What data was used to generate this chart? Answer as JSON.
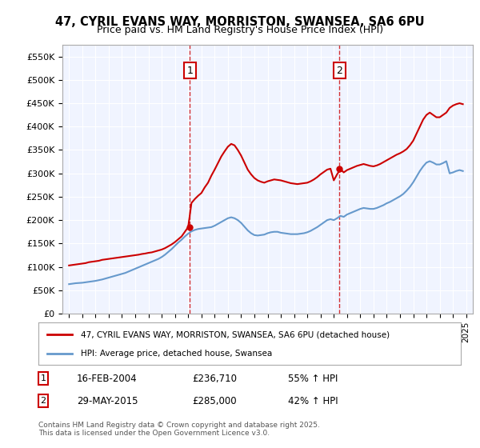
{
  "title_line1": "47, CYRIL EVANS WAY, MORRISTON, SWANSEA, SA6 6PU",
  "title_line2": "Price paid vs. HM Land Registry's House Price Index (HPI)",
  "legend_line1": "47, CYRIL EVANS WAY, MORRISTON, SWANSEA, SA6 6PU (detached house)",
  "legend_line2": "HPI: Average price, detached house, Swansea",
  "footer": "Contains HM Land Registry data © Crown copyright and database right 2025.\nThis data is licensed under the Open Government Licence v3.0.",
  "annotation1": {
    "label": "1",
    "date_str": "16-FEB-2004",
    "price_str": "£236,710",
    "hpi_str": "55% ↑ HPI",
    "x_year": 2004.12
  },
  "annotation2": {
    "label": "2",
    "date_str": "29-MAY-2015",
    "price_str": "£285,000",
    "hpi_str": "42% ↑ HPI",
    "x_year": 2015.42
  },
  "ylim": [
    0,
    575000
  ],
  "xlim_start": 1994.5,
  "xlim_end": 2025.5,
  "yticks": [
    0,
    50000,
    100000,
    150000,
    200000,
    250000,
    300000,
    350000,
    400000,
    450000,
    500000,
    550000
  ],
  "ytick_labels": [
    "£0",
    "£50K",
    "£100K",
    "£150K",
    "£200K",
    "£250K",
    "£300K",
    "£350K",
    "£400K",
    "£450K",
    "£500K",
    "£550K"
  ],
  "xticks": [
    1995,
    1996,
    1997,
    1998,
    1999,
    2000,
    2001,
    2002,
    2003,
    2004,
    2005,
    2006,
    2007,
    2008,
    2009,
    2010,
    2011,
    2012,
    2013,
    2014,
    2015,
    2016,
    2017,
    2018,
    2019,
    2020,
    2021,
    2022,
    2023,
    2024,
    2025
  ],
  "property_color": "#cc0000",
  "hpi_color": "#6699cc",
  "background_color": "#f0f4ff",
  "vline_color": "#cc0000",
  "property_x": [
    1995.0,
    1995.25,
    1995.5,
    1995.75,
    1996.0,
    1996.25,
    1996.5,
    1996.75,
    1997.0,
    1997.25,
    1997.5,
    1997.75,
    1998.0,
    1998.25,
    1998.5,
    1998.75,
    1999.0,
    1999.25,
    1999.5,
    1999.75,
    2000.0,
    2000.25,
    2000.5,
    2000.75,
    2001.0,
    2001.25,
    2001.5,
    2001.75,
    2002.0,
    2002.25,
    2002.5,
    2002.75,
    2003.0,
    2003.25,
    2003.5,
    2003.75,
    2004.0,
    2004.25,
    2004.5,
    2004.75,
    2005.0,
    2005.25,
    2005.5,
    2005.75,
    2006.0,
    2006.25,
    2006.5,
    2006.75,
    2007.0,
    2007.25,
    2007.5,
    2007.75,
    2008.0,
    2008.25,
    2008.5,
    2008.75,
    2009.0,
    2009.25,
    2009.5,
    2009.75,
    2010.0,
    2010.25,
    2010.5,
    2010.75,
    2011.0,
    2011.25,
    2011.5,
    2011.75,
    2012.0,
    2012.25,
    2012.5,
    2012.75,
    2013.0,
    2013.25,
    2013.5,
    2013.75,
    2014.0,
    2014.25,
    2014.5,
    2014.75,
    2015.0,
    2015.25,
    2015.5,
    2015.75,
    2016.0,
    2016.25,
    2016.5,
    2016.75,
    2017.0,
    2017.25,
    2017.5,
    2017.75,
    2018.0,
    2018.25,
    2018.5,
    2018.75,
    2019.0,
    2019.25,
    2019.5,
    2019.75,
    2020.0,
    2020.25,
    2020.5,
    2020.75,
    2021.0,
    2021.25,
    2021.5,
    2021.75,
    2022.0,
    2022.25,
    2022.5,
    2022.75,
    2023.0,
    2023.25,
    2023.5,
    2023.75,
    2024.0,
    2024.25,
    2024.5,
    2024.75
  ],
  "property_y": [
    103000,
    104000,
    105000,
    106000,
    107000,
    108000,
    110000,
    111000,
    112000,
    113000,
    115000,
    116000,
    117000,
    118000,
    119000,
    120000,
    121000,
    122000,
    123000,
    124000,
    125000,
    126000,
    127500,
    128500,
    130000,
    131000,
    133000,
    135000,
    137000,
    140000,
    144000,
    148000,
    153000,
    159000,
    165000,
    175000,
    185000,
    236710,
    245000,
    252000,
    258000,
    270000,
    280000,
    295000,
    308000,
    322000,
    336000,
    347000,
    357000,
    363000,
    360000,
    350000,
    338000,
    323000,
    308000,
    298000,
    290000,
    285000,
    282000,
    280000,
    283000,
    285000,
    287000,
    286000,
    285000,
    283000,
    281000,
    279000,
    278000,
    277000,
    278000,
    279000,
    280000,
    283000,
    287000,
    292000,
    298000,
    303000,
    308000,
    310000,
    285000,
    298000,
    309000,
    302000,
    307000,
    310000,
    313000,
    316000,
    318000,
    320000,
    318000,
    316000,
    315000,
    317000,
    320000,
    324000,
    328000,
    332000,
    336000,
    340000,
    343000,
    347000,
    352000,
    360000,
    370000,
    385000,
    400000,
    415000,
    425000,
    430000,
    425000,
    420000,
    420000,
    425000,
    430000,
    440000,
    445000,
    448000,
    450000,
    448000
  ],
  "hpi_x": [
    1995.0,
    1995.25,
    1995.5,
    1995.75,
    1996.0,
    1996.25,
    1996.5,
    1996.75,
    1997.0,
    1997.25,
    1997.5,
    1997.75,
    1998.0,
    1998.25,
    1998.5,
    1998.75,
    1999.0,
    1999.25,
    1999.5,
    1999.75,
    2000.0,
    2000.25,
    2000.5,
    2000.75,
    2001.0,
    2001.25,
    2001.5,
    2001.75,
    2002.0,
    2002.25,
    2002.5,
    2002.75,
    2003.0,
    2003.25,
    2003.5,
    2003.75,
    2004.0,
    2004.25,
    2004.5,
    2004.75,
    2005.0,
    2005.25,
    2005.5,
    2005.75,
    2006.0,
    2006.25,
    2006.5,
    2006.75,
    2007.0,
    2007.25,
    2007.5,
    2007.75,
    2008.0,
    2008.25,
    2008.5,
    2008.75,
    2009.0,
    2009.25,
    2009.5,
    2009.75,
    2010.0,
    2010.25,
    2010.5,
    2010.75,
    2011.0,
    2011.25,
    2011.5,
    2011.75,
    2012.0,
    2012.25,
    2012.5,
    2012.75,
    2013.0,
    2013.25,
    2013.5,
    2013.75,
    2014.0,
    2014.25,
    2014.5,
    2014.75,
    2015.0,
    2015.25,
    2015.5,
    2015.75,
    2016.0,
    2016.25,
    2016.5,
    2016.75,
    2017.0,
    2017.25,
    2017.5,
    2017.75,
    2018.0,
    2018.25,
    2018.5,
    2018.75,
    2019.0,
    2019.25,
    2019.5,
    2019.75,
    2020.0,
    2020.25,
    2020.5,
    2020.75,
    2021.0,
    2021.25,
    2021.5,
    2021.75,
    2022.0,
    2022.25,
    2022.5,
    2022.75,
    2023.0,
    2023.25,
    2023.5,
    2023.75,
    2024.0,
    2024.25,
    2024.5,
    2024.75
  ],
  "hpi_y": [
    63000,
    64000,
    65000,
    65500,
    66000,
    67000,
    68000,
    69000,
    70000,
    71500,
    73000,
    75000,
    77000,
    79000,
    81000,
    83000,
    85000,
    87000,
    90000,
    93000,
    96000,
    99000,
    102000,
    105000,
    108000,
    111000,
    114000,
    117000,
    121000,
    126000,
    132000,
    138000,
    145000,
    152000,
    158000,
    165000,
    171000,
    176000,
    179000,
    181000,
    182000,
    183000,
    184000,
    185000,
    188000,
    192000,
    196000,
    200000,
    204000,
    206000,
    204000,
    200000,
    194000,
    186000,
    178000,
    172000,
    168000,
    167000,
    168000,
    169000,
    172000,
    174000,
    175000,
    175000,
    173000,
    172000,
    171000,
    170000,
    170000,
    170000,
    171000,
    172000,
    174000,
    177000,
    181000,
    185000,
    190000,
    195000,
    200000,
    202000,
    200000,
    204000,
    209000,
    207000,
    212000,
    215000,
    218000,
    221000,
    224000,
    226000,
    225000,
    224000,
    224000,
    226000,
    229000,
    232000,
    236000,
    239000,
    243000,
    247000,
    251000,
    256000,
    263000,
    271000,
    281000,
    293000,
    305000,
    315000,
    323000,
    326000,
    323000,
    319000,
    319000,
    322000,
    326000,
    300000,
    302000,
    305000,
    307000,
    305000
  ]
}
